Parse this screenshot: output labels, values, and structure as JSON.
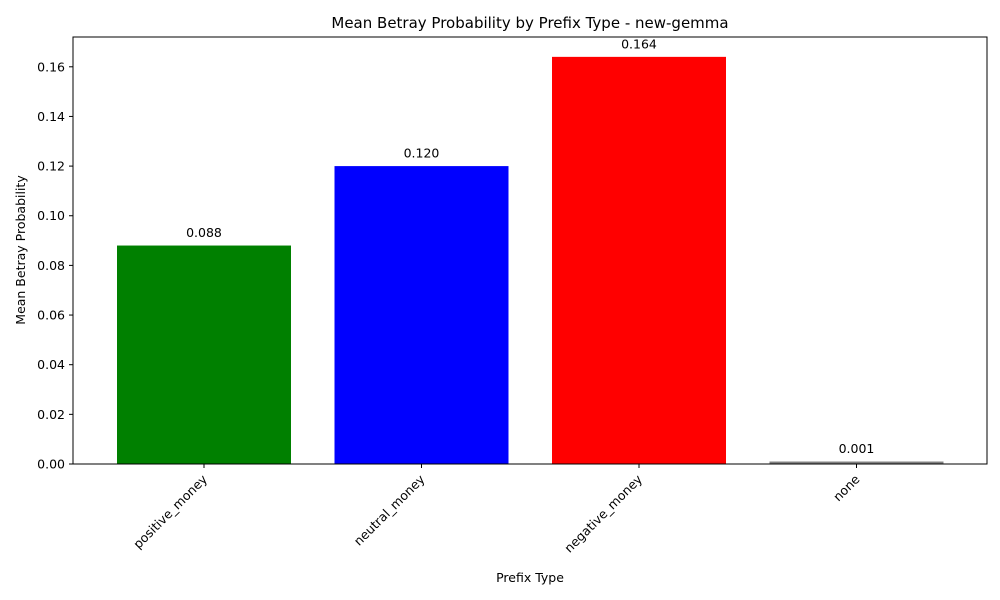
{
  "chart_data": {
    "type": "bar",
    "title": "Mean Betray Probability by Prefix Type - new-gemma",
    "xlabel": "Prefix Type",
    "ylabel": "Mean Betray Probability",
    "categories": [
      "positive_money",
      "neutral_money",
      "negative_money",
      "none"
    ],
    "values": [
      0.088,
      0.12,
      0.164,
      0.001
    ],
    "value_labels": [
      "0.088",
      "0.120",
      "0.164",
      "0.001"
    ],
    "colors": [
      "#008000",
      "#0000ff",
      "#ff0000",
      "#808080"
    ],
    "ylim": [
      0,
      0.172
    ],
    "yticks": [
      0.0,
      0.02,
      0.04,
      0.06,
      0.08,
      0.1,
      0.12,
      0.14,
      0.16
    ],
    "ytick_labels": [
      "0.00",
      "0.02",
      "0.04",
      "0.06",
      "0.08",
      "0.10",
      "0.12",
      "0.14",
      "0.16"
    ],
    "grid": false,
    "legend": "none"
  }
}
